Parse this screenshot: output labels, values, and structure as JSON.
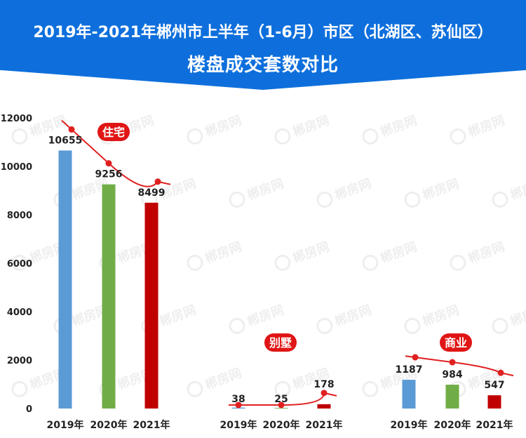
{
  "header": {
    "title_line1": "2019年-2021年郴州市上半年（1-6月）市区（北湖区、苏仙区）",
    "title_line2": "楼盘成交套数对比"
  },
  "watermark_text": "郴房网",
  "colors": {
    "header_bg": "#0e6fdc",
    "bar_2019": "#5b9bd5",
    "bar_2020": "#70ad47",
    "bar_2021": "#c00000",
    "trend": "#e02020",
    "tag_bg": "#e01515"
  },
  "chart_data": {
    "type": "bar",
    "ylim": [
      0,
      12000
    ],
    "yticks": [
      0,
      2000,
      4000,
      6000,
      8000,
      10000,
      12000
    ],
    "groups": [
      {
        "name": "住宅",
        "categories": [
          "2019年",
          "2020年",
          "2021年"
        ],
        "values": [
          10655,
          9256,
          8499
        ]
      },
      {
        "name": "别墅",
        "categories": [
          "2019年",
          "2020年",
          "2021年"
        ],
        "values": [
          38,
          25,
          178
        ]
      },
      {
        "name": "商业",
        "categories": [
          "2019年",
          "2020年",
          "2021年"
        ],
        "values": [
          1187,
          984,
          547
        ]
      }
    ]
  }
}
